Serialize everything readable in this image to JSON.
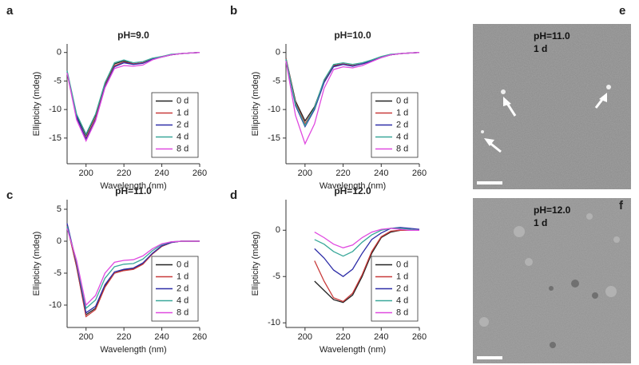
{
  "chart_data": [
    {
      "type": "line",
      "panel": "a",
      "title": "pH=9.0",
      "xlabel": "Wavelength (nm)",
      "ylabel": "Ellipticity (mdeg)",
      "x": [
        190,
        195,
        200,
        205,
        210,
        215,
        220,
        225,
        230,
        235,
        240,
        245,
        250,
        255,
        260
      ],
      "xlim": [
        190,
        260
      ],
      "xticks": [
        200,
        220,
        240,
        260
      ],
      "ylim": [
        -19.5,
        1.5
      ],
      "yticks": [
        0,
        -5,
        -10,
        -15
      ],
      "legend": "lower right",
      "series": [
        {
          "name": "0 d",
          "color": "#222222",
          "values": [
            -3.5,
            -11,
            -14.5,
            -11,
            -5.5,
            -2,
            -1.5,
            -2,
            -1.8,
            -1.2,
            -0.8,
            -0.4,
            -0.2,
            -0.1,
            0
          ]
        },
        {
          "name": "1 d",
          "color": "#c83a3a",
          "values": [
            -3.5,
            -11.5,
            -15,
            -11.5,
            -5.8,
            -2.3,
            -1.7,
            -2,
            -1.8,
            -1.1,
            -0.7,
            -0.4,
            -0.2,
            -0.1,
            0
          ]
        },
        {
          "name": "2 d",
          "color": "#2e2ea8",
          "values": [
            -3.3,
            -11.3,
            -15.2,
            -11.8,
            -6,
            -2.5,
            -1.8,
            -2.1,
            -1.9,
            -1.2,
            -0.8,
            -0.4,
            -0.2,
            -0.1,
            0
          ]
        },
        {
          "name": "4 d",
          "color": "#3aa89a",
          "values": [
            -3.2,
            -10.8,
            -14.3,
            -10.8,
            -5.3,
            -1.8,
            -1.3,
            -1.8,
            -1.6,
            -1,
            -0.7,
            -0.3,
            -0.2,
            -0.1,
            0
          ]
        },
        {
          "name": "8 d",
          "color": "#e04ae0",
          "values": [
            -3.6,
            -11.8,
            -15.5,
            -12,
            -6.2,
            -2.8,
            -2.3,
            -2.4,
            -2.2,
            -1.3,
            -0.8,
            -0.4,
            -0.2,
            -0.1,
            0
          ]
        }
      ]
    },
    {
      "type": "line",
      "panel": "b",
      "title": "pH=10.0",
      "xlabel": "Wavelength (nm)",
      "ylabel": "Ellipticity (mdeg)",
      "x": [
        190,
        195,
        200,
        205,
        210,
        215,
        220,
        225,
        230,
        235,
        240,
        245,
        250,
        255,
        260
      ],
      "xlim": [
        190,
        260
      ],
      "xticks": [
        200,
        220,
        240,
        260
      ],
      "ylim": [
        -19.5,
        1.5
      ],
      "yticks": [
        0,
        -5,
        -10,
        -15
      ],
      "legend": "lower right",
      "series": [
        {
          "name": "0 d",
          "color": "#222222",
          "values": [
            -1,
            -8.5,
            -12,
            -9.5,
            -5,
            -2.3,
            -2,
            -2.3,
            -2,
            -1.5,
            -0.8,
            -0.4,
            -0.2,
            -0.1,
            0
          ]
        },
        {
          "name": "1 d",
          "color": "#c83a3a",
          "values": [
            -1,
            -8.8,
            -12.5,
            -9.8,
            -5.2,
            -2.4,
            -2,
            -2.3,
            -2,
            -1.5,
            -0.8,
            -0.4,
            -0.2,
            -0.1,
            0
          ]
        },
        {
          "name": "2 d",
          "color": "#2e2ea8",
          "values": [
            -1.2,
            -9.3,
            -13,
            -10,
            -5.3,
            -2.5,
            -2.1,
            -2.4,
            -2,
            -1.5,
            -0.9,
            -0.4,
            -0.2,
            -0.1,
            0
          ]
        },
        {
          "name": "4 d",
          "color": "#3aa89a",
          "values": [
            -1.1,
            -9,
            -12.8,
            -9.7,
            -4.8,
            -2.1,
            -1.8,
            -2.1,
            -1.8,
            -1.3,
            -0.7,
            -0.3,
            -0.2,
            -0.1,
            0
          ]
        },
        {
          "name": "8 d",
          "color": "#e04ae0",
          "values": [
            -1.5,
            -11,
            -16,
            -12.5,
            -6.3,
            -3,
            -2.5,
            -2.7,
            -2.3,
            -1.6,
            -0.9,
            -0.4,
            -0.2,
            -0.1,
            0
          ]
        }
      ]
    },
    {
      "type": "line",
      "panel": "c",
      "title": "pH=11.0",
      "xlabel": "Wavelength (nm)",
      "ylabel": "Ellipticity (mdeg)",
      "x": [
        190,
        195,
        200,
        205,
        210,
        215,
        220,
        225,
        230,
        235,
        240,
        245,
        250,
        255,
        260
      ],
      "xlim": [
        190,
        260
      ],
      "xticks": [
        200,
        220,
        240,
        260
      ],
      "ylim": [
        -13.5,
        6.5
      ],
      "yticks": [
        5,
        0,
        -5,
        -10
      ],
      "legend": "lower right",
      "series": [
        {
          "name": "0 d",
          "color": "#222222",
          "values": [
            2.5,
            -4,
            -11.5,
            -10.5,
            -7,
            -5,
            -4.5,
            -4.3,
            -3.5,
            -2,
            -0.8,
            -0.2,
            0,
            0,
            0
          ]
        },
        {
          "name": "1 d",
          "color": "#c83a3a",
          "values": [
            2.5,
            -4,
            -11.8,
            -10.7,
            -7.2,
            -5,
            -4.6,
            -4.4,
            -3.6,
            -2,
            -0.8,
            -0.2,
            0,
            0,
            0
          ]
        },
        {
          "name": "2 d",
          "color": "#2e2ea8",
          "values": [
            2.8,
            -3.5,
            -11.2,
            -10.2,
            -6.8,
            -4.8,
            -4.4,
            -4.2,
            -3.4,
            -1.9,
            -0.7,
            -0.2,
            0,
            0,
            0
          ]
        },
        {
          "name": "4 d",
          "color": "#3aa89a",
          "values": [
            2.3,
            -3.2,
            -10.5,
            -9.2,
            -5.8,
            -4,
            -3.6,
            -3.5,
            -2.8,
            -1.5,
            -0.5,
            -0.1,
            0,
            0,
            0
          ]
        },
        {
          "name": "8 d",
          "color": "#e04ae0",
          "values": [
            2,
            -3,
            -10,
            -8.5,
            -5,
            -3.3,
            -3,
            -2.9,
            -2.3,
            -1.2,
            -0.4,
            -0.1,
            0,
            0,
            0
          ]
        }
      ]
    },
    {
      "type": "line",
      "panel": "d",
      "title": "pH=12.0",
      "xlabel": "Wavelength (nm)",
      "ylabel": "Ellipticity (mdeg)",
      "x": [
        190,
        195,
        200,
        205,
        210,
        215,
        220,
        225,
        230,
        235,
        240,
        245,
        250,
        255,
        260
      ],
      "xlim": [
        190,
        260
      ],
      "xticks": [
        200,
        220,
        240,
        260
      ],
      "ylim": [
        -10.5,
        3.3
      ],
      "yticks": [
        0,
        -5,
        -10
      ],
      "legend": "lower right",
      "series": [
        {
          "name": "0 d",
          "color": "#222222",
          "values": [
            null,
            null,
            null,
            -5.5,
            -6.5,
            -7.5,
            -7.8,
            -7,
            -5,
            -2.5,
            -0.8,
            -0.2,
            0,
            0,
            0
          ]
        },
        {
          "name": "1 d",
          "color": "#c83a3a",
          "values": [
            null,
            null,
            null,
            -3.3,
            -5.5,
            -7.3,
            -7.7,
            -6.8,
            -4.8,
            -2.3,
            -0.7,
            -0.1,
            0,
            0,
            0
          ]
        },
        {
          "name": "2 d",
          "color": "#2e2ea8",
          "values": [
            null,
            null,
            null,
            -2,
            -3,
            -4.3,
            -5,
            -4.2,
            -2.5,
            -1,
            -0.3,
            0.2,
            0.3,
            0.2,
            0.1
          ]
        },
        {
          "name": "4 d",
          "color": "#3aa89a",
          "values": [
            null,
            null,
            null,
            -1,
            -1.5,
            -2.3,
            -2.8,
            -2.3,
            -1.3,
            -0.5,
            0,
            0.2,
            0.2,
            0.1,
            0
          ]
        },
        {
          "name": "8 d",
          "color": "#e04ae0",
          "values": [
            null,
            null,
            null,
            -0.2,
            -0.8,
            -1.5,
            -1.9,
            -1.6,
            -0.8,
            -0.2,
            0.1,
            0.2,
            0.1,
            0,
            0
          ]
        }
      ]
    }
  ],
  "images": [
    {
      "panel": "e",
      "labels": [
        "pH=11.0",
        "1 d"
      ]
    },
    {
      "panel": "f",
      "labels": [
        "pH=12.0",
        "1 d"
      ]
    }
  ]
}
